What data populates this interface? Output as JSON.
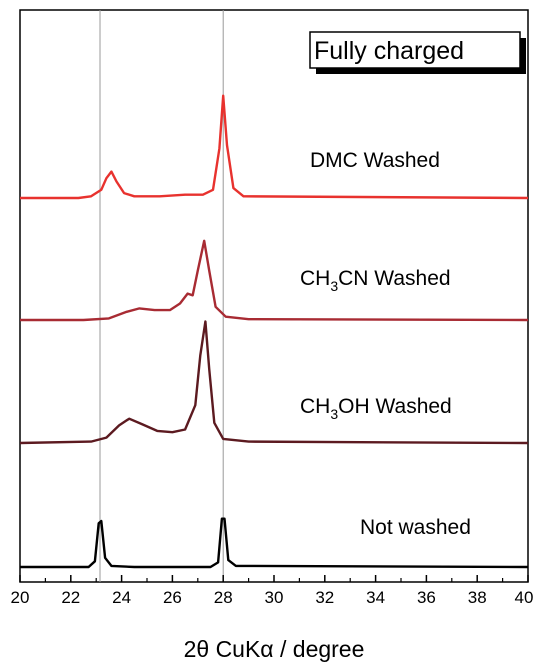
{
  "chart_data": {
    "type": "line",
    "title": "",
    "xlabel": "2θ CuKα / degree",
    "ylabel": "",
    "xlim": [
      20,
      40
    ],
    "xticks": [
      "20",
      "22",
      "24",
      "26",
      "28",
      "30",
      "32",
      "34",
      "36",
      "38",
      "40"
    ],
    "reference_lines_x": [
      23.15,
      28.0
    ],
    "legend": {
      "text": "Fully charged",
      "placement": "top-right"
    },
    "grid": false,
    "y_axis_ticks": false,
    "series": [
      {
        "name": "DMC Washed",
        "label": "DMC Washed",
        "color": "#e8322e",
        "points": [
          [
            20,
            0
          ],
          [
            22.3,
            0
          ],
          [
            22.8,
            0.01
          ],
          [
            23.2,
            0.05
          ],
          [
            23.4,
            0.12
          ],
          [
            23.6,
            0.16
          ],
          [
            23.8,
            0.1
          ],
          [
            24.1,
            0.03
          ],
          [
            24.5,
            0.01
          ],
          [
            25.5,
            0.01
          ],
          [
            26.5,
            0.02
          ],
          [
            27.2,
            0.02
          ],
          [
            27.6,
            0.05
          ],
          [
            27.85,
            0.3
          ],
          [
            28.0,
            0.62
          ],
          [
            28.15,
            0.32
          ],
          [
            28.4,
            0.06
          ],
          [
            28.8,
            0.01
          ],
          [
            40,
            0
          ]
        ]
      },
      {
        "name": "CH3CN Washed",
        "label_main": "CH",
        "label_sub": "3",
        "label_rest": "CN Washed",
        "color": "#a82b33",
        "points": [
          [
            20,
            0
          ],
          [
            22.5,
            0
          ],
          [
            23.5,
            0.01
          ],
          [
            24.2,
            0.05
          ],
          [
            24.7,
            0.07
          ],
          [
            25.3,
            0.06
          ],
          [
            25.9,
            0.06
          ],
          [
            26.3,
            0.1
          ],
          [
            26.6,
            0.16
          ],
          [
            26.8,
            0.15
          ],
          [
            27.0,
            0.3
          ],
          [
            27.25,
            0.48
          ],
          [
            27.45,
            0.3
          ],
          [
            27.7,
            0.08
          ],
          [
            28.1,
            0.02
          ],
          [
            29,
            0.005
          ],
          [
            40,
            0
          ]
        ]
      },
      {
        "name": "CH3OH Washed",
        "label_main": "CH",
        "label_sub": "3",
        "label_rest": "OH Washed",
        "color": "#5c1a20",
        "points": [
          [
            20,
            0
          ],
          [
            22.8,
            0.01
          ],
          [
            23.4,
            0.04
          ],
          [
            23.9,
            0.13
          ],
          [
            24.3,
            0.18
          ],
          [
            24.8,
            0.14
          ],
          [
            25.4,
            0.09
          ],
          [
            26.0,
            0.08
          ],
          [
            26.5,
            0.1
          ],
          [
            26.9,
            0.28
          ],
          [
            27.1,
            0.65
          ],
          [
            27.3,
            0.9
          ],
          [
            27.45,
            0.55
          ],
          [
            27.65,
            0.15
          ],
          [
            28.0,
            0.03
          ],
          [
            29,
            0.01
          ],
          [
            40,
            0
          ]
        ]
      },
      {
        "name": "Not washed",
        "label": "Not washed",
        "color": "#000000",
        "points": [
          [
            20,
            0
          ],
          [
            22.7,
            0
          ],
          [
            22.95,
            0.05
          ],
          [
            23.1,
            0.38
          ],
          [
            23.2,
            0.4
          ],
          [
            23.35,
            0.08
          ],
          [
            23.6,
            0.01
          ],
          [
            24.5,
            0
          ],
          [
            27.5,
            0
          ],
          [
            27.8,
            0.04
          ],
          [
            27.95,
            0.42
          ],
          [
            28.05,
            0.42
          ],
          [
            28.2,
            0.06
          ],
          [
            28.5,
            0.01
          ],
          [
            40,
            0
          ]
        ]
      }
    ]
  }
}
